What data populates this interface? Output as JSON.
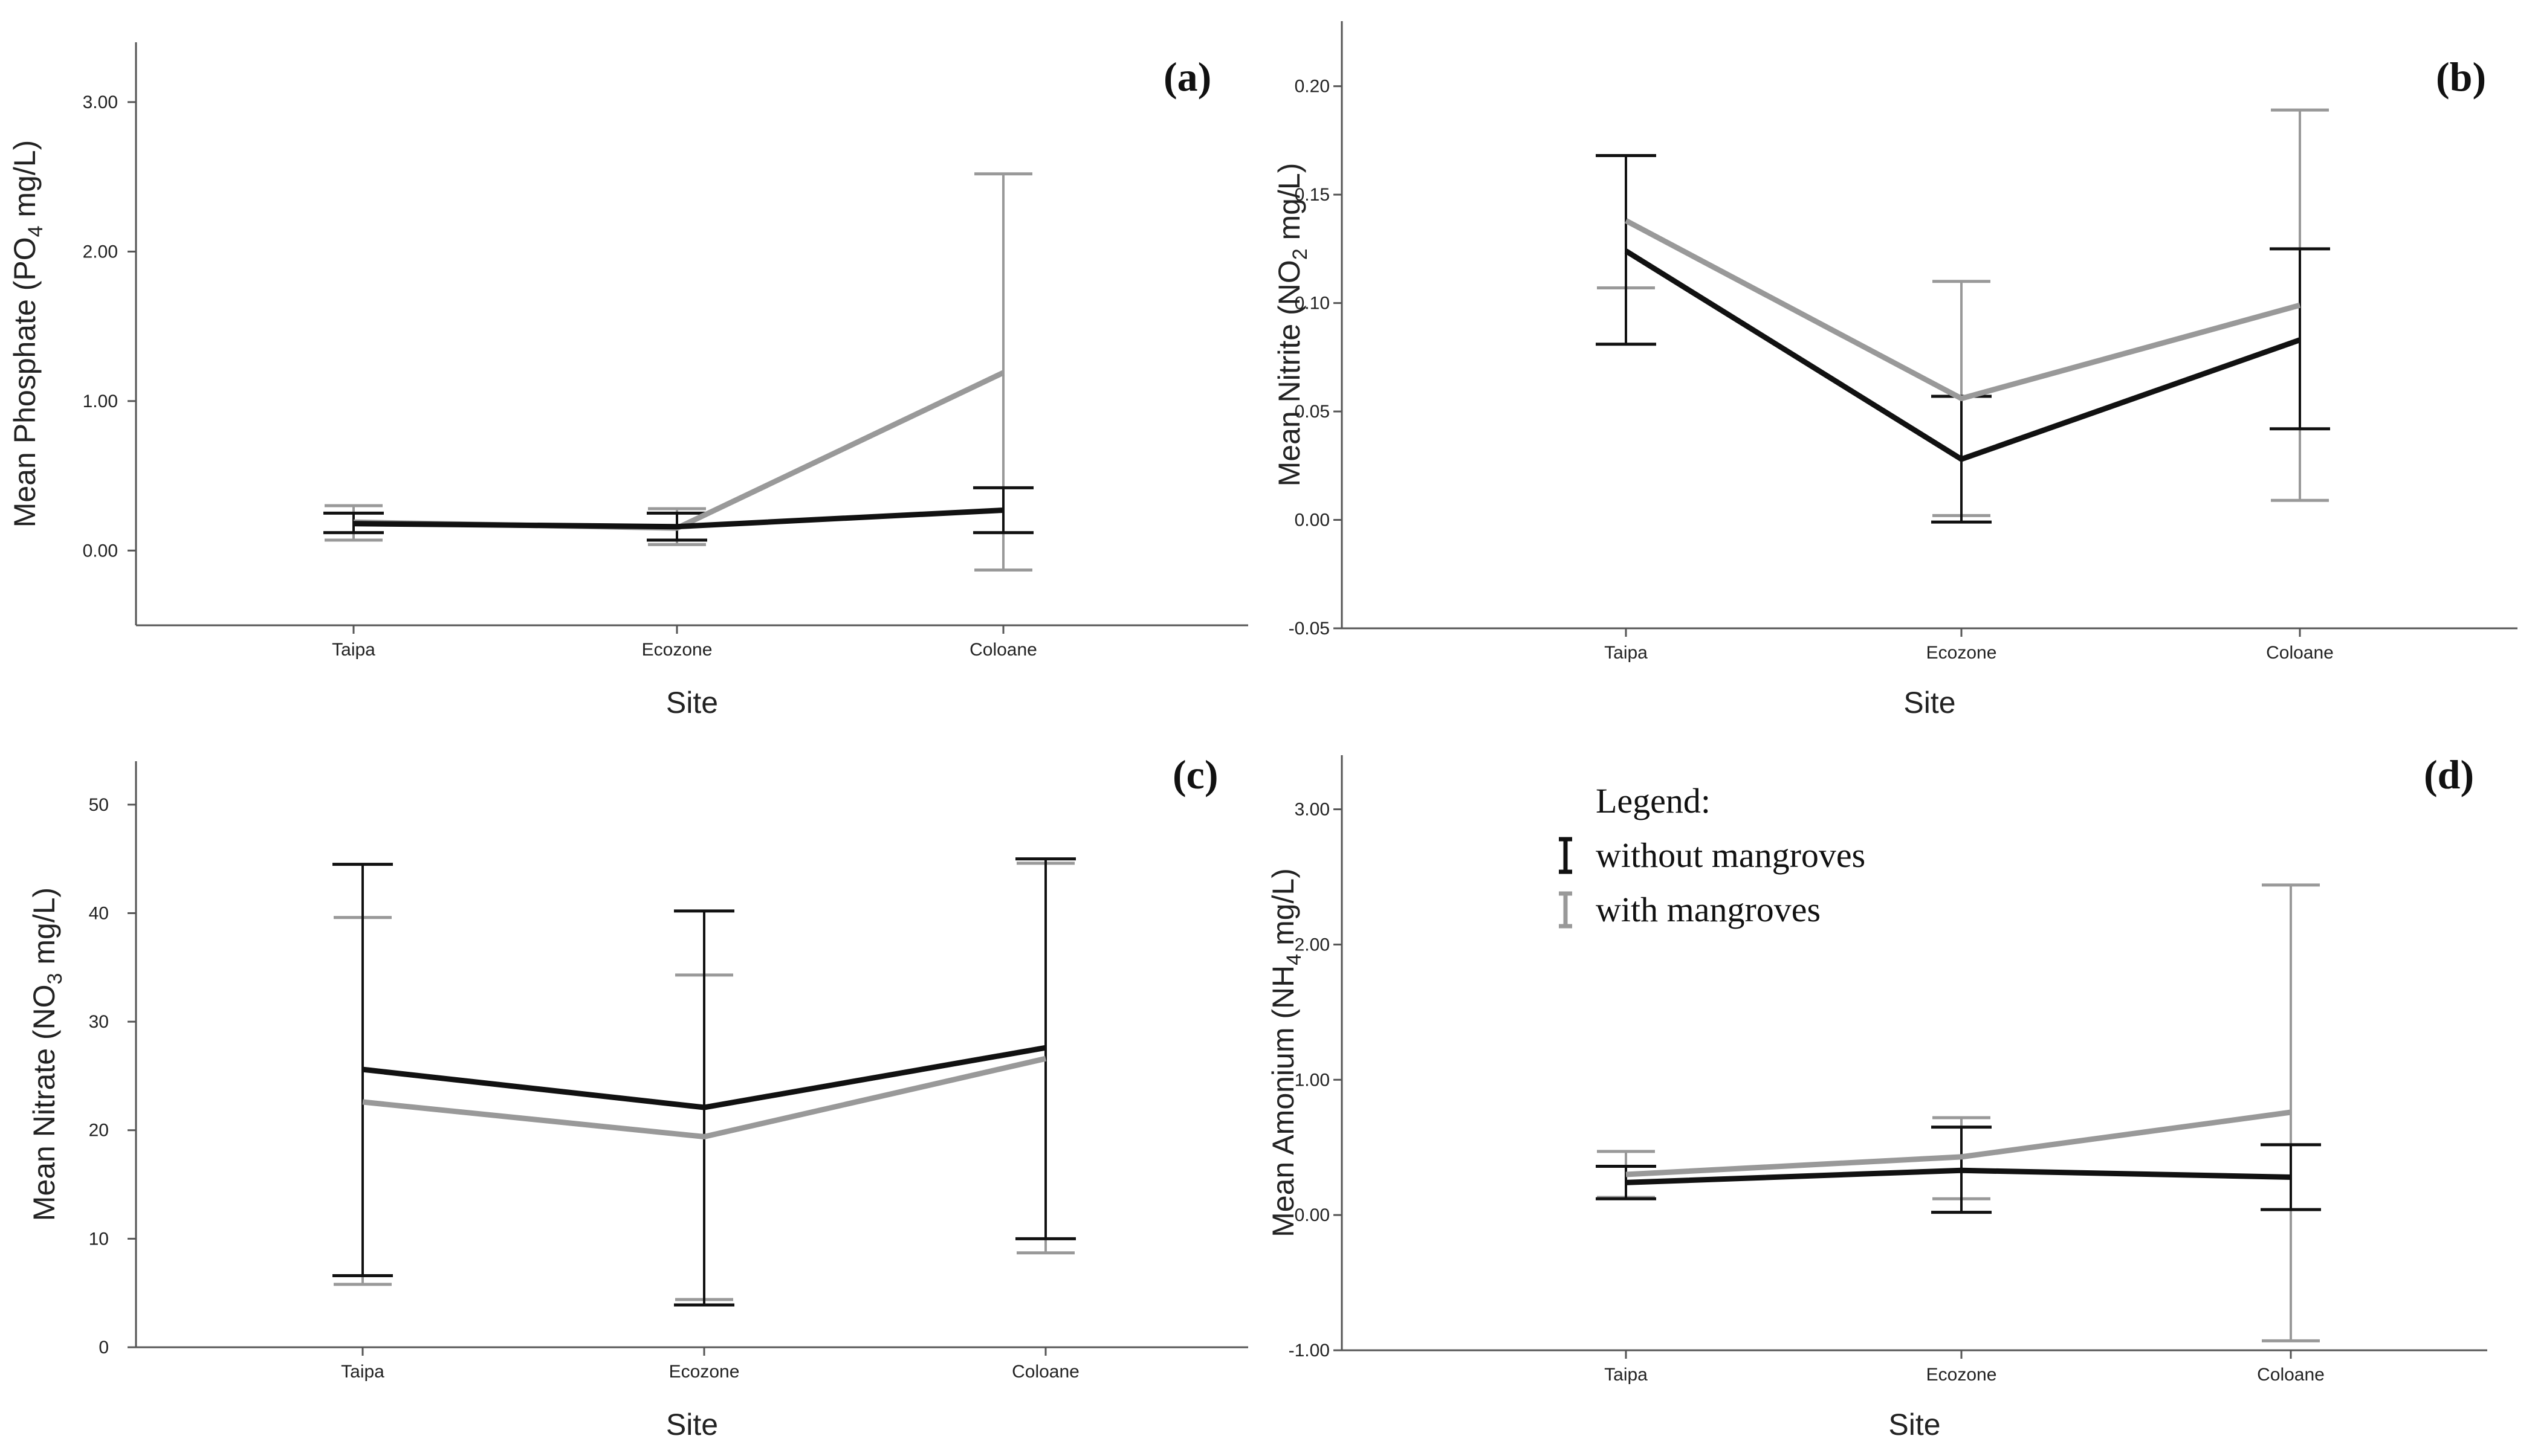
{
  "colors": {
    "without": "#111111",
    "with": "#999999"
  },
  "legend": {
    "title": "Legend:",
    "items": [
      {
        "label": "without mangroves",
        "series": "without"
      },
      {
        "label": "with mangroves",
        "series": "with"
      }
    ]
  },
  "chart_data": [
    {
      "id": "a",
      "type": "line",
      "panel_label": "(a)",
      "xlabel": "Site",
      "ylabel": "Mean Phosphate (PO",
      "ylabel_sub": "4",
      "ylabel_suffix": " mg/L)",
      "categories": [
        "Taipa",
        "Ecozone",
        "Coloane"
      ],
      "ylim": [
        -0.5,
        3.4
      ],
      "yticks": [
        0,
        1,
        2,
        3
      ],
      "ytick_labels": [
        "0.00",
        "1.00",
        "2.00",
        "3.00"
      ],
      "series": [
        {
          "name": "without mangroves",
          "key": "without",
          "values": [
            0.18,
            0.16,
            0.27
          ],
          "lower": [
            0.12,
            0.07,
            0.12
          ],
          "upper": [
            0.25,
            0.25,
            0.42
          ]
        },
        {
          "name": "with mangroves",
          "key": "with",
          "values": [
            0.19,
            0.15,
            1.19
          ],
          "lower": [
            0.07,
            0.04,
            -0.13
          ],
          "upper": [
            0.3,
            0.28,
            2.52
          ]
        }
      ]
    },
    {
      "id": "b",
      "type": "line",
      "panel_label": "(b)",
      "xlabel": "Site",
      "ylabel": "Mean Nitrite (NO",
      "ylabel_sub": "2",
      "ylabel_suffix": " mg/L)",
      "categories": [
        "Taipa",
        "Ecozone",
        "Coloane"
      ],
      "ylim": [
        -0.05,
        0.23
      ],
      "yticks": [
        -0.05,
        0,
        0.05,
        0.1,
        0.15,
        0.2
      ],
      "ytick_labels": [
        "-0.05",
        "0.00",
        "0.05",
        "0.10",
        "0.15",
        "0.20"
      ],
      "series": [
        {
          "name": "without mangroves",
          "key": "without",
          "values": [
            0.124,
            0.028,
            0.083
          ],
          "lower": [
            0.081,
            -0.001,
            0.042
          ],
          "upper": [
            0.168,
            0.057,
            0.125
          ]
        },
        {
          "name": "with mangroves",
          "key": "with",
          "values": [
            0.138,
            0.056,
            0.099
          ],
          "lower": [
            0.107,
            0.002,
            0.009
          ],
          "upper": [
            0.168,
            0.11,
            0.189
          ]
        }
      ]
    },
    {
      "id": "c",
      "type": "line",
      "panel_label": "(c)",
      "xlabel": "Site",
      "ylabel": "Mean Nitrate (NO",
      "ylabel_sub": "3",
      "ylabel_suffix": " mg/L)",
      "categories": [
        "Taipa",
        "Ecozone",
        "Coloane"
      ],
      "ylim": [
        0,
        54
      ],
      "yticks": [
        0,
        10,
        20,
        30,
        40,
        50
      ],
      "ytick_labels": [
        "0",
        "10",
        "20",
        "30",
        "40",
        "50"
      ],
      "series": [
        {
          "name": "without mangroves",
          "key": "without",
          "values": [
            25.6,
            22.1,
            27.6
          ],
          "lower": [
            6.6,
            3.9,
            10.0
          ],
          "upper": [
            44.5,
            40.2,
            45.0
          ]
        },
        {
          "name": "with mangroves",
          "key": "with",
          "values": [
            22.6,
            19.4,
            26.6
          ],
          "lower": [
            5.8,
            4.4,
            8.7
          ],
          "upper": [
            39.6,
            34.3,
            44.6
          ]
        }
      ]
    },
    {
      "id": "d",
      "type": "line",
      "panel_label": "(d)",
      "xlabel": "Site",
      "ylabel": "Mean Amonium (NH",
      "ylabel_sub": "4",
      "ylabel_suffix": " mg/L)",
      "categories": [
        "Taipa",
        "Ecozone",
        "Coloane"
      ],
      "ylim": [
        -1.0,
        3.4
      ],
      "yticks": [
        -1,
        0,
        1,
        2,
        3
      ],
      "ytick_labels": [
        "-1.00",
        "0.00",
        "1.00",
        "2.00",
        "3.00"
      ],
      "series": [
        {
          "name": "without mangroves",
          "key": "without",
          "values": [
            0.24,
            0.33,
            0.28
          ],
          "lower": [
            0.12,
            0.02,
            0.04
          ],
          "upper": [
            0.36,
            0.65,
            0.52
          ]
        },
        {
          "name": "with mangroves",
          "key": "with",
          "values": [
            0.3,
            0.43,
            0.76
          ],
          "lower": [
            0.13,
            0.12,
            -0.93
          ],
          "upper": [
            0.47,
            0.72,
            2.44
          ]
        }
      ]
    }
  ]
}
